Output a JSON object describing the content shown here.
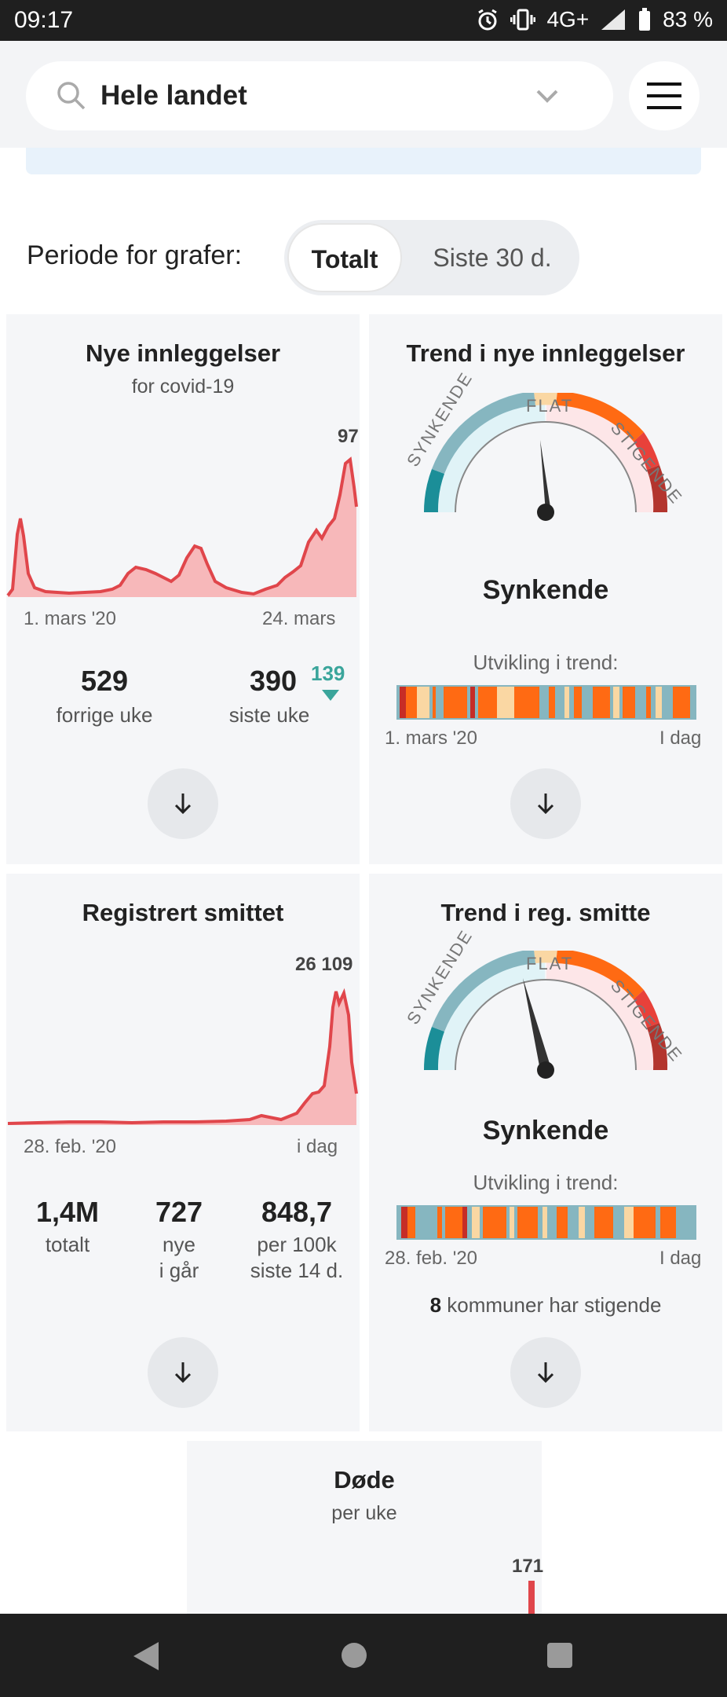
{
  "status_bar": {
    "time": "09:17",
    "network": "4G+",
    "battery": "83 %"
  },
  "header": {
    "region": "Hele landet"
  },
  "period": {
    "label": "Periode for grafer:",
    "options": [
      "Totalt",
      "Siste 30 d."
    ],
    "selected": "Totalt"
  },
  "admissions": {
    "title": "Nye innleggelser",
    "subtitle": "for covid-19",
    "peak_label": "97",
    "x_start": "1. mars '20",
    "x_end": "24. mars",
    "prev_value": "529",
    "prev_label": "forrige uke",
    "last_value": "390",
    "last_label": "siste uke",
    "change": "139"
  },
  "admissions_trend": {
    "title": "Trend i nye innleggelser",
    "gauge_left": "SYNKENDE",
    "gauge_mid": "FLAT",
    "gauge_right": "STIGENDE",
    "status": "Synkende",
    "dev_label": "Utvikling i trend:",
    "x_start": "1. mars '20",
    "x_end": "I dag"
  },
  "cases": {
    "title": "Registrert smittet",
    "peak_label": "26 109",
    "x_start": "28. feb. '20",
    "x_end": "i dag",
    "stats": [
      {
        "value": "1,4M",
        "label1": "totalt",
        "label2": ""
      },
      {
        "value": "727",
        "label1": "nye",
        "label2": "i går"
      },
      {
        "value": "848,7",
        "label1": "per 100k",
        "label2": "siste 14 d."
      }
    ]
  },
  "cases_trend": {
    "title": "Trend i reg. smitte",
    "gauge_left": "SYNKENDE",
    "gauge_mid": "FLAT",
    "gauge_right": "STIGENDE",
    "status": "Synkende",
    "dev_label": "Utvikling i trend:",
    "x_start": "28. feb. '20",
    "x_end": "I dag",
    "municipalities_count": "8",
    "municipalities_text": "kommuner har stigende"
  },
  "deaths": {
    "title": "Døde",
    "subtitle": "per uke",
    "peak_label": "171"
  },
  "colors": {
    "chart_line": "#e0464b",
    "chart_fill": "#f7b8ba",
    "falling_dark": "#1b8e98",
    "falling_mid": "#86b6c0",
    "flat": "#fad7a3",
    "rising": "#ff6a13",
    "rising_dark": "#c62d27",
    "change_down": "#3aa59b"
  }
}
